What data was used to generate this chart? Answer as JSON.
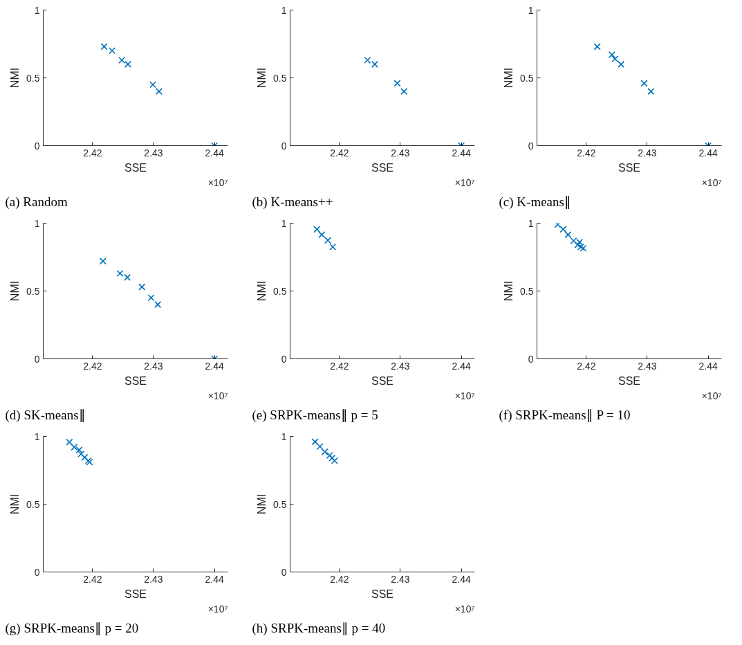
{
  "chart_data": [
    {
      "type": "scatter",
      "title": "(a) Random",
      "xlabel": "SSE",
      "ylabel": "NMI",
      "color": "#0072bd",
      "marker": "cross",
      "xlim": [
        2.4119,
        2.4422
      ],
      "ylim": [
        0,
        1
      ],
      "xticks": [
        2.42,
        2.43,
        2.44
      ],
      "yticks": [
        0,
        0.5,
        1
      ],
      "annotations": [
        "×10⁷"
      ],
      "x": [
        2.4219,
        2.4232,
        2.4248,
        2.4258,
        2.4299,
        2.4309,
        2.44
      ],
      "values": [
        0.73,
        0.7,
        0.63,
        0.6,
        0.45,
        0.4,
        0
      ]
    },
    {
      "type": "scatter",
      "title": "(b) K-means++",
      "xlabel": "SSE",
      "ylabel": "NMI",
      "color": "#0072bd",
      "marker": "cross",
      "xlim": [
        2.4119,
        2.4422
      ],
      "ylim": [
        0,
        1
      ],
      "xticks": [
        2.42,
        2.43,
        2.44
      ],
      "yticks": [
        0,
        0.5,
        1
      ],
      "annotations": [
        "×10⁷"
      ],
      "x": [
        2.4246,
        2.4258,
        2.4295,
        2.4306,
        2.44
      ],
      "values": [
        0.63,
        0.6,
        0.46,
        0.4,
        0
      ]
    },
    {
      "type": "scatter",
      "title": "(c) K-means∥",
      "xlabel": "SSE",
      "ylabel": "NMI",
      "color": "#0072bd",
      "marker": "cross",
      "xlim": [
        2.4119,
        2.4422
      ],
      "ylim": [
        0,
        1
      ],
      "xticks": [
        2.42,
        2.43,
        2.44
      ],
      "yticks": [
        0,
        0.5,
        1
      ],
      "annotations": [
        "×10⁷"
      ],
      "x": [
        2.4218,
        2.4242,
        2.4247,
        2.4257,
        2.4295,
        2.4306,
        2.44
      ],
      "values": [
        0.73,
        0.67,
        0.64,
        0.6,
        0.46,
        0.4,
        0
      ]
    },
    {
      "type": "scatter",
      "title": "(d) SK-means∥",
      "xlabel": "SSE",
      "ylabel": "NMI",
      "color": "#0072bd",
      "marker": "cross",
      "xlim": [
        2.4119,
        2.4422
      ],
      "ylim": [
        0,
        1
      ],
      "xticks": [
        2.42,
        2.43,
        2.44
      ],
      "yticks": [
        0,
        0.5,
        1
      ],
      "annotations": [
        "×10⁷"
      ],
      "x": [
        2.4217,
        2.4245,
        2.4257,
        2.4281,
        2.4296,
        2.4307,
        2.44
      ],
      "values": [
        0.72,
        0.63,
        0.6,
        0.53,
        0.45,
        0.4,
        0
      ]
    },
    {
      "type": "scatter",
      "title": "(e) SRPK-means∥ p = 5",
      "xlabel": "SSE",
      "ylabel": "NMI",
      "color": "#0072bd",
      "marker": "cross",
      "xlim": [
        2.4119,
        2.4422
      ],
      "ylim": [
        0,
        1
      ],
      "xticks": [
        2.42,
        2.43,
        2.44
      ],
      "yticks": [
        0,
        0.5,
        1
      ],
      "annotations": [
        "×10⁷"
      ],
      "x": [
        2.4163,
        2.4171,
        2.4181,
        2.4189
      ],
      "values": [
        0.955,
        0.915,
        0.873,
        0.825
      ]
    },
    {
      "type": "scatter",
      "title": "(f) SRPK-means∥ P = 10",
      "xlabel": "SSE",
      "ylabel": "NMI",
      "color": "#0072bd",
      "marker": "cross",
      "xlim": [
        2.4119,
        2.4422
      ],
      "ylim": [
        0,
        1
      ],
      "xticks": [
        2.42,
        2.43,
        2.44
      ],
      "yticks": [
        0,
        0.5,
        1
      ],
      "annotations": [
        "×10⁷"
      ],
      "x": [
        2.4153,
        2.4162,
        2.417,
        2.4179,
        2.4186,
        2.4189,
        2.4191,
        2.4195
      ],
      "values": [
        0.99,
        0.955,
        0.915,
        0.87,
        0.84,
        0.86,
        0.825,
        0.815
      ]
    },
    {
      "type": "scatter",
      "title": "(g) SRPK-means∥ p = 20",
      "xlabel": "SSE",
      "ylabel": "NMI",
      "color": "#0072bd",
      "marker": "cross",
      "xlim": [
        2.4119,
        2.4422
      ],
      "ylim": [
        0,
        1
      ],
      "xticks": [
        2.42,
        2.43,
        2.44
      ],
      "yticks": [
        0,
        0.5,
        1
      ],
      "annotations": [
        "×10⁷"
      ],
      "x": [
        2.4162,
        2.417,
        2.4178,
        2.4181,
        2.4187,
        2.4193,
        2.4195
      ],
      "values": [
        0.957,
        0.92,
        0.9,
        0.87,
        0.845,
        0.82,
        0.81
      ]
    },
    {
      "type": "scatter",
      "title": "(h) SRPK-means∥ p = 40",
      "xlabel": "SSE",
      "ylabel": "NMI",
      "color": "#0072bd",
      "marker": "cross",
      "xlim": [
        2.4119,
        2.4422
      ],
      "ylim": [
        0,
        1
      ],
      "xticks": [
        2.42,
        2.43,
        2.44
      ],
      "yticks": [
        0,
        0.5,
        1
      ],
      "annotations": [
        "×10⁷"
      ],
      "x": [
        2.416,
        2.4168,
        2.4176,
        2.4184,
        2.4188,
        2.4192
      ],
      "values": [
        0.96,
        0.925,
        0.886,
        0.86,
        0.84,
        0.82
      ]
    }
  ]
}
